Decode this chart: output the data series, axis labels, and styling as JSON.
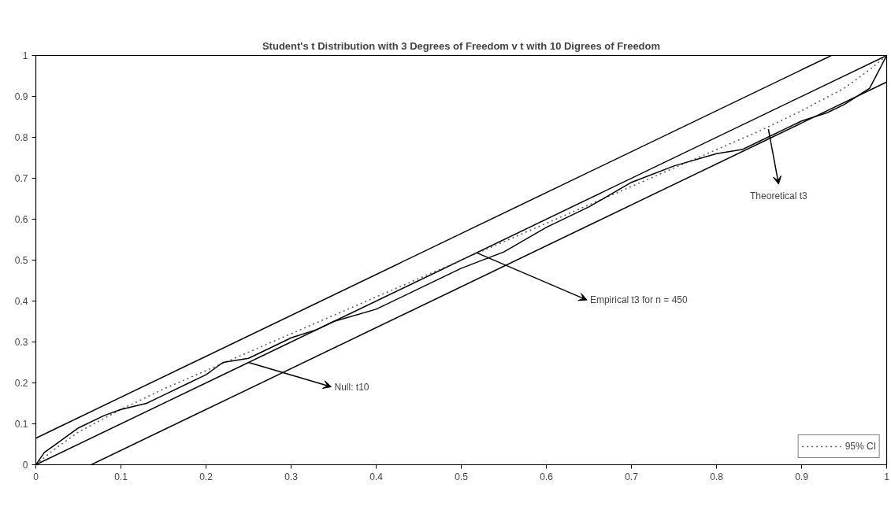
{
  "chart_data": {
    "type": "line",
    "title": "Student's t Distribution with 3 Degrees of Freedom v t with 10 Digrees of Freedom",
    "xlim": [
      0,
      1
    ],
    "ylim": [
      0,
      1
    ],
    "xticks": [
      0,
      0.1,
      0.2,
      0.3,
      0.4,
      0.5,
      0.6,
      0.7,
      0.8,
      0.9,
      1
    ],
    "yticks": [
      0,
      0.1,
      0.2,
      0.3,
      0.4,
      0.5,
      0.6,
      0.7,
      0.8,
      0.9,
      1
    ],
    "grid": false,
    "legend": "bottom right",
    "marker": "none",
    "series": [
      {
        "color": "#000000",
        "line_style": "solid",
        "x": [
          0,
          1
        ],
        "values": [
          0,
          1
        ]
      },
      {
        "color": "#000000",
        "line_style": "solid",
        "x": [
          0,
          0.935
        ],
        "values": [
          0.065,
          1
        ]
      },
      {
        "color": "#000000",
        "line_style": "solid",
        "x": [
          0.065,
          1
        ],
        "values": [
          0,
          0.935
        ]
      },
      {
        "name": "95% CI",
        "color": "#555555",
        "line_style": "dotted",
        "x": [
          0,
          0.02,
          0.05,
          0.1,
          0.15,
          0.2,
          0.3,
          0.4,
          0.5,
          0.6,
          0.7,
          0.8,
          0.85,
          0.9,
          0.95,
          0.98,
          1
        ],
        "values": [
          0,
          0.035,
          0.08,
          0.135,
          0.185,
          0.23,
          0.32,
          0.41,
          0.5,
          0.59,
          0.68,
          0.77,
          0.815,
          0.865,
          0.92,
          0.965,
          1
        ]
      },
      {
        "color": "#000000",
        "line_style": "solid",
        "x": [
          0,
          0.01,
          0.03,
          0.05,
          0.08,
          0.1,
          0.13,
          0.15,
          0.18,
          0.2,
          0.22,
          0.25,
          0.28,
          0.3,
          0.33,
          0.35,
          0.4,
          0.45,
          0.5,
          0.55,
          0.6,
          0.65,
          0.7,
          0.75,
          0.8,
          0.83,
          0.85,
          0.88,
          0.9,
          0.93,
          0.95,
          0.98,
          1
        ],
        "values": [
          0,
          0.03,
          0.06,
          0.09,
          0.12,
          0.135,
          0.15,
          0.17,
          0.2,
          0.22,
          0.25,
          0.26,
          0.29,
          0.31,
          0.33,
          0.35,
          0.38,
          0.43,
          0.48,
          0.52,
          0.58,
          0.63,
          0.69,
          0.73,
          0.76,
          0.77,
          0.79,
          0.82,
          0.84,
          0.86,
          0.88,
          0.92,
          1
        ]
      }
    ],
    "annotations": [
      {
        "text": "Null: t10",
        "x": 0.25,
        "y": 0.25
      },
      {
        "text": "Empirical t3 for n = 450",
        "x": 0.518,
        "y": 0.518
      },
      {
        "text": "Theoretical t3",
        "x": 0.861,
        "y": 0.82
      }
    ]
  }
}
